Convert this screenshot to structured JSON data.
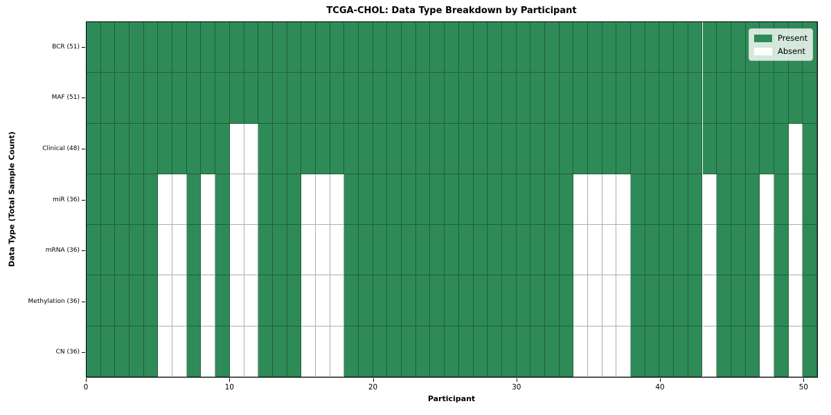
{
  "chart_data": {
    "type": "heatmap",
    "title": "TCGA-CHOL: Data Type Breakdown by Participant",
    "xlabel": "Participant",
    "ylabel": "Data Type (Total Sample Count)",
    "n_participants": 51,
    "x_range": [
      0,
      51
    ],
    "x_ticks": [
      0,
      10,
      20,
      30,
      40,
      50
    ],
    "grid": true,
    "rows": [
      {
        "name": "BCR",
        "total": 51,
        "tick_label": "BCR (51)",
        "absent_participants": []
      },
      {
        "name": "MAF",
        "total": 51,
        "tick_label": "MAF (51)",
        "absent_participants": []
      },
      {
        "name": "Clinical",
        "total": 48,
        "tick_label": "Clinical (48)",
        "absent_participants": [
          10,
          11,
          49
        ]
      },
      {
        "name": "miR",
        "total": 36,
        "tick_label": "miR (36)",
        "absent_participants": [
          5,
          6,
          8,
          10,
          11,
          15,
          16,
          17,
          34,
          35,
          36,
          37,
          43,
          47,
          49
        ]
      },
      {
        "name": "mRNA",
        "total": 36,
        "tick_label": "mRNA (36)",
        "absent_participants": [
          5,
          6,
          8,
          10,
          11,
          15,
          16,
          17,
          34,
          35,
          36,
          37,
          43,
          47,
          49
        ]
      },
      {
        "name": "Methylation",
        "total": 36,
        "tick_label": "Methylation (36)",
        "absent_participants": [
          5,
          6,
          8,
          10,
          11,
          15,
          16,
          17,
          34,
          35,
          36,
          37,
          43,
          47,
          49
        ]
      },
      {
        "name": "CN",
        "total": 36,
        "tick_label": "CN (36)",
        "absent_participants": [
          5,
          6,
          8,
          10,
          11,
          15,
          16,
          17,
          34,
          35,
          36,
          37,
          43,
          47,
          49
        ]
      }
    ],
    "colors": {
      "present": "#2e8b57",
      "absent": "#ffffff",
      "cell_edge": "rgba(0,0,0,0.32)"
    },
    "legend": {
      "position": "upper right",
      "entries": [
        {
          "label": "Present",
          "color": "#2e8b57"
        },
        {
          "label": "Absent",
          "color": "#ffffff"
        }
      ]
    }
  }
}
